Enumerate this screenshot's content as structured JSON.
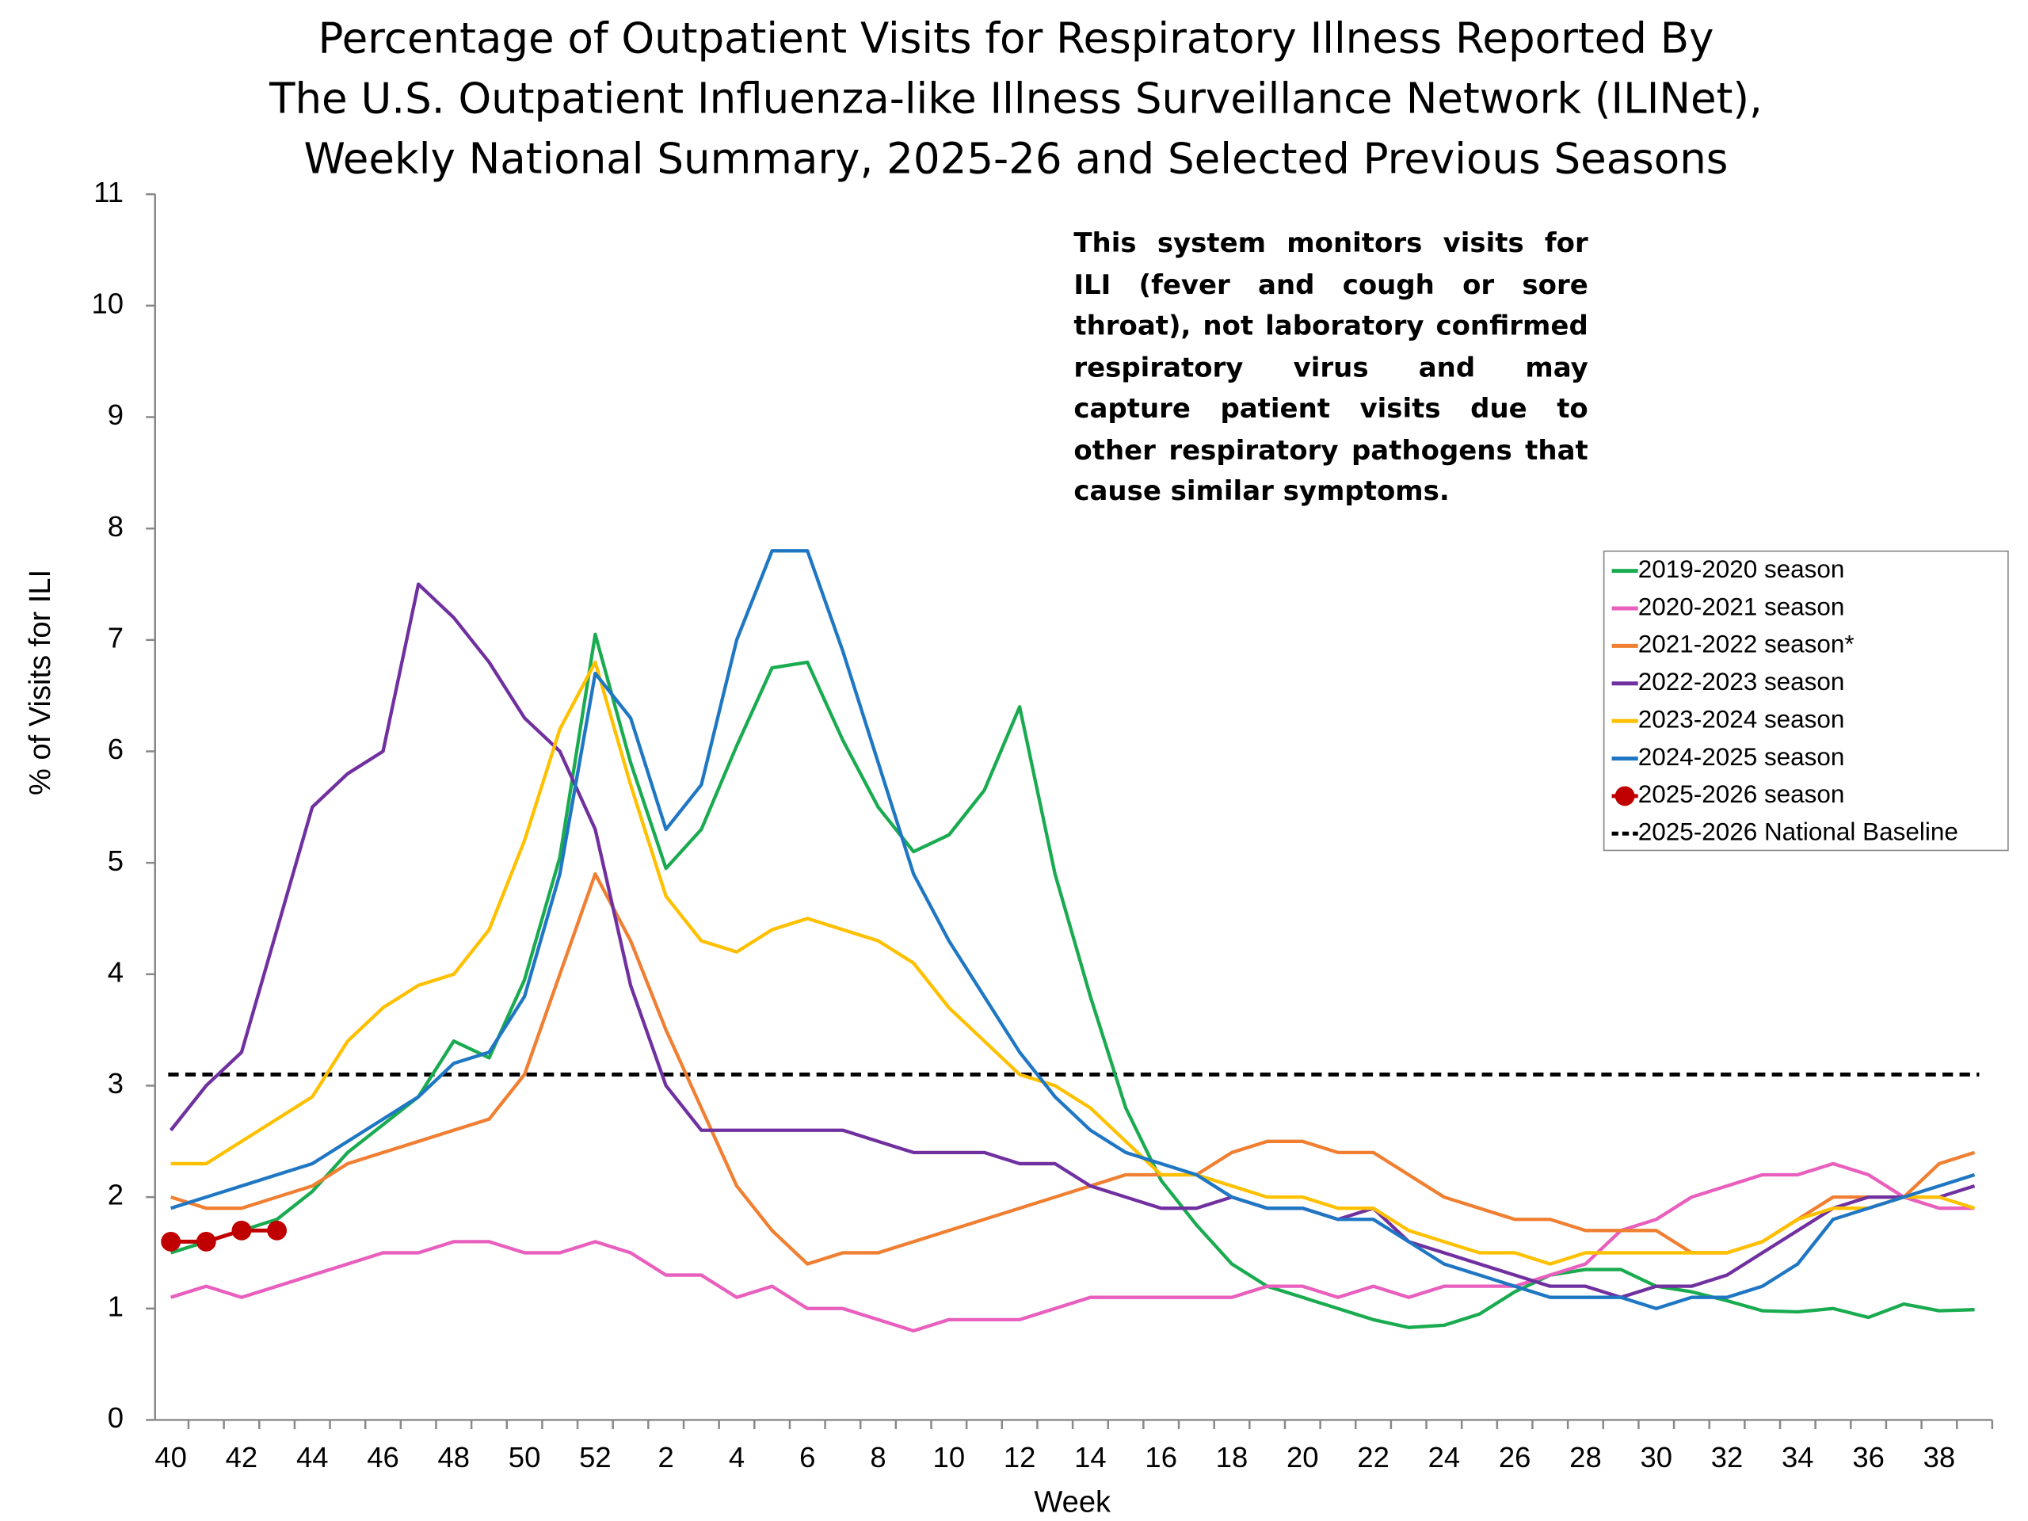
{
  "chart_data": {
    "type": "line",
    "title": [
      "Percentage of Outpatient Visits for Respiratory Illness Reported By",
      "The U.S. Outpatient Influenza-like Illness Surveillance Network (ILINet),",
      "Weekly National Summary, 2025-26 and Selected Previous Seasons"
    ],
    "annotation": "This system monitors visits for ILI (fever and cough or sore throat), not laboratory confirmed respiratory virus and may capture patient visits due to other respiratory pathogens that cause similar symptoms.",
    "x_label": "Week",
    "y_label": "% of Visits for ILI",
    "categories": [
      "40",
      null,
      "42",
      null,
      "44",
      null,
      "46",
      null,
      "48",
      null,
      "50",
      null,
      "52",
      null,
      "2",
      null,
      "4",
      null,
      "6",
      null,
      "8",
      null,
      "10",
      null,
      "12",
      null,
      "14",
      null,
      "16",
      null,
      "18",
      null,
      "20",
      null,
      "22",
      null,
      "24",
      null,
      "26",
      null,
      "28",
      null,
      "30",
      null,
      "32",
      null,
      "34",
      null,
      "36",
      null,
      "38",
      null
    ],
    "ylim": [
      0,
      11
    ],
    "yticks": [
      0,
      1,
      2,
      3,
      4,
      5,
      6,
      7,
      8,
      9,
      10,
      11
    ],
    "legend": "right",
    "series": [
      {
        "name": "2019-2020 season",
        "color": "#1aab50",
        "values": [
          1.5,
          1.6,
          1.7,
          1.8,
          2.05,
          2.4,
          2.65,
          2.9,
          3.4,
          3.25,
          3.95,
          5.05,
          7.05,
          5.9,
          4.95,
          5.3,
          6.05,
          6.75,
          6.8,
          6.1,
          5.5,
          5.1,
          5.25,
          5.65,
          6.4,
          4.9,
          3.8,
          2.8,
          2.15,
          1.75,
          1.4,
          1.2,
          1.1,
          1.0,
          0.9,
          0.83,
          0.85,
          0.95,
          1.15,
          1.3,
          1.35,
          1.35,
          1.2,
          1.15,
          1.07,
          0.98,
          0.97,
          1.0,
          0.92,
          1.04,
          0.98,
          0.99
        ]
      },
      {
        "name": "2020-2021 season",
        "color": "#e85fbd",
        "values": [
          1.1,
          1.2,
          1.1,
          1.2,
          1.3,
          1.4,
          1.5,
          1.5,
          1.6,
          1.6,
          1.5,
          1.5,
          1.6,
          1.5,
          1.3,
          1.3,
          1.1,
          1.2,
          1.0,
          1.0,
          0.9,
          0.8,
          0.9,
          0.9,
          0.9,
          1.0,
          1.1,
          1.1,
          1.1,
          1.1,
          1.1,
          1.2,
          1.2,
          1.1,
          1.2,
          1.1,
          1.2,
          1.2,
          1.2,
          1.3,
          1.4,
          1.7,
          1.8,
          2.0,
          2.1,
          2.2,
          2.2,
          2.3,
          2.2,
          2.0,
          1.9,
          1.9
        ]
      },
      {
        "name": "2021-2022 season*",
        "color": "#f07f32",
        "values": [
          2.0,
          1.9,
          1.9,
          2.0,
          2.1,
          2.3,
          2.4,
          2.5,
          2.6,
          2.7,
          3.1,
          4.0,
          4.9,
          4.3,
          3.5,
          2.8,
          2.1,
          1.7,
          1.4,
          1.5,
          1.5,
          1.6,
          1.7,
          1.8,
          1.9,
          2.0,
          2.1,
          2.2,
          2.2,
          2.2,
          2.4,
          2.5,
          2.5,
          2.4,
          2.4,
          2.2,
          2.0,
          1.9,
          1.8,
          1.8,
          1.7,
          1.7,
          1.7,
          1.5,
          1.5,
          1.6,
          1.8,
          2.0,
          2.0,
          2.0,
          2.3,
          2.4
        ]
      },
      {
        "name": "2022-2023 season",
        "color": "#7030a0",
        "values": [
          2.6,
          3.0,
          3.3,
          4.4,
          5.5,
          5.8,
          6.0,
          7.5,
          7.2,
          6.8,
          6.3,
          6.0,
          5.3,
          3.9,
          3.0,
          2.6,
          2.6,
          2.6,
          2.6,
          2.6,
          2.5,
          2.4,
          2.4,
          2.4,
          2.3,
          2.3,
          2.1,
          2.0,
          1.9,
          1.9,
          2.0,
          1.9,
          1.9,
          1.8,
          1.9,
          1.6,
          1.5,
          1.4,
          1.3,
          1.2,
          1.2,
          1.1,
          1.2,
          1.2,
          1.3,
          1.5,
          1.7,
          1.9,
          2.0,
          2.0,
          2.0,
          2.1
        ]
      },
      {
        "name": "2023-2024 season",
        "color": "#ffc000",
        "values": [
          2.3,
          2.3,
          2.5,
          2.7,
          2.9,
          3.4,
          3.7,
          3.9,
          4.0,
          4.4,
          5.2,
          6.2,
          6.8,
          5.7,
          4.7,
          4.3,
          4.2,
          4.4,
          4.5,
          4.4,
          4.3,
          4.1,
          3.7,
          3.4,
          3.1,
          3.0,
          2.8,
          2.5,
          2.2,
          2.2,
          2.1,
          2.0,
          2.0,
          1.9,
          1.9,
          1.7,
          1.6,
          1.5,
          1.5,
          1.4,
          1.5,
          1.5,
          1.5,
          1.5,
          1.5,
          1.6,
          1.8,
          1.9,
          1.9,
          2.0,
          2.0,
          1.9
        ]
      },
      {
        "name": "2024-2025 season",
        "color": "#1f77c4",
        "values": [
          1.9,
          2.0,
          2.1,
          2.2,
          2.3,
          2.5,
          2.7,
          2.9,
          3.2,
          3.3,
          3.8,
          4.9,
          6.7,
          6.3,
          5.3,
          5.7,
          7.0,
          7.8,
          7.8,
          6.9,
          5.9,
          4.9,
          4.3,
          3.8,
          3.3,
          2.9,
          2.6,
          2.4,
          2.3,
          2.2,
          2.0,
          1.9,
          1.9,
          1.8,
          1.8,
          1.6,
          1.4,
          1.3,
          1.2,
          1.1,
          1.1,
          1.1,
          1.0,
          1.1,
          1.1,
          1.2,
          1.4,
          1.8,
          1.9,
          2.0,
          2.1,
          2.2
        ]
      },
      {
        "name": "2025-2026 season",
        "color": "#c00000",
        "markers": true,
        "values": [
          1.6,
          1.6,
          1.7,
          1.7,
          null,
          null,
          null,
          null,
          null,
          null,
          null,
          null,
          null,
          null,
          null,
          null,
          null,
          null,
          null,
          null,
          null,
          null,
          null,
          null,
          null,
          null,
          null,
          null,
          null,
          null,
          null,
          null,
          null,
          null,
          null,
          null,
          null,
          null,
          null,
          null,
          null,
          null,
          null,
          null,
          null,
          null,
          null,
          null,
          null,
          null,
          null,
          null
        ]
      }
    ],
    "baseline": {
      "name": "2025-2026 National Baseline",
      "color": "#000000",
      "value": 3.1
    }
  }
}
